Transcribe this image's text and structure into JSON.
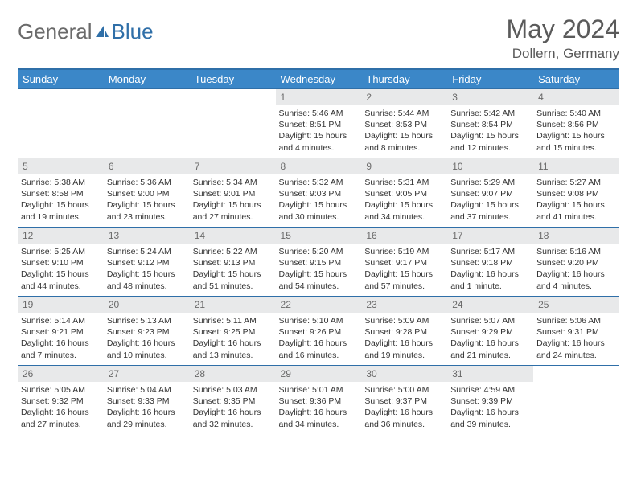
{
  "brand": {
    "part1": "General",
    "part2": "Blue"
  },
  "title": "May 2024",
  "location": "Dollern, Germany",
  "colors": {
    "header_bg": "#3b87c8",
    "border": "#2f6fa8",
    "daynum_bg": "#e8e9ea",
    "text_gray": "#6a6a6a"
  },
  "weekdays": [
    "Sunday",
    "Monday",
    "Tuesday",
    "Wednesday",
    "Thursday",
    "Friday",
    "Saturday"
  ],
  "weeks": [
    [
      {
        "n": "",
        "lines": []
      },
      {
        "n": "",
        "lines": []
      },
      {
        "n": "",
        "lines": []
      },
      {
        "n": "1",
        "lines": [
          "Sunrise: 5:46 AM",
          "Sunset: 8:51 PM",
          "Daylight: 15 hours",
          "and 4 minutes."
        ]
      },
      {
        "n": "2",
        "lines": [
          "Sunrise: 5:44 AM",
          "Sunset: 8:53 PM",
          "Daylight: 15 hours",
          "and 8 minutes."
        ]
      },
      {
        "n": "3",
        "lines": [
          "Sunrise: 5:42 AM",
          "Sunset: 8:54 PM",
          "Daylight: 15 hours",
          "and 12 minutes."
        ]
      },
      {
        "n": "4",
        "lines": [
          "Sunrise: 5:40 AM",
          "Sunset: 8:56 PM",
          "Daylight: 15 hours",
          "and 15 minutes."
        ]
      }
    ],
    [
      {
        "n": "5",
        "lines": [
          "Sunrise: 5:38 AM",
          "Sunset: 8:58 PM",
          "Daylight: 15 hours",
          "and 19 minutes."
        ]
      },
      {
        "n": "6",
        "lines": [
          "Sunrise: 5:36 AM",
          "Sunset: 9:00 PM",
          "Daylight: 15 hours",
          "and 23 minutes."
        ]
      },
      {
        "n": "7",
        "lines": [
          "Sunrise: 5:34 AM",
          "Sunset: 9:01 PM",
          "Daylight: 15 hours",
          "and 27 minutes."
        ]
      },
      {
        "n": "8",
        "lines": [
          "Sunrise: 5:32 AM",
          "Sunset: 9:03 PM",
          "Daylight: 15 hours",
          "and 30 minutes."
        ]
      },
      {
        "n": "9",
        "lines": [
          "Sunrise: 5:31 AM",
          "Sunset: 9:05 PM",
          "Daylight: 15 hours",
          "and 34 minutes."
        ]
      },
      {
        "n": "10",
        "lines": [
          "Sunrise: 5:29 AM",
          "Sunset: 9:07 PM",
          "Daylight: 15 hours",
          "and 37 minutes."
        ]
      },
      {
        "n": "11",
        "lines": [
          "Sunrise: 5:27 AM",
          "Sunset: 9:08 PM",
          "Daylight: 15 hours",
          "and 41 minutes."
        ]
      }
    ],
    [
      {
        "n": "12",
        "lines": [
          "Sunrise: 5:25 AM",
          "Sunset: 9:10 PM",
          "Daylight: 15 hours",
          "and 44 minutes."
        ]
      },
      {
        "n": "13",
        "lines": [
          "Sunrise: 5:24 AM",
          "Sunset: 9:12 PM",
          "Daylight: 15 hours",
          "and 48 minutes."
        ]
      },
      {
        "n": "14",
        "lines": [
          "Sunrise: 5:22 AM",
          "Sunset: 9:13 PM",
          "Daylight: 15 hours",
          "and 51 minutes."
        ]
      },
      {
        "n": "15",
        "lines": [
          "Sunrise: 5:20 AM",
          "Sunset: 9:15 PM",
          "Daylight: 15 hours",
          "and 54 minutes."
        ]
      },
      {
        "n": "16",
        "lines": [
          "Sunrise: 5:19 AM",
          "Sunset: 9:17 PM",
          "Daylight: 15 hours",
          "and 57 minutes."
        ]
      },
      {
        "n": "17",
        "lines": [
          "Sunrise: 5:17 AM",
          "Sunset: 9:18 PM",
          "Daylight: 16 hours",
          "and 1 minute."
        ]
      },
      {
        "n": "18",
        "lines": [
          "Sunrise: 5:16 AM",
          "Sunset: 9:20 PM",
          "Daylight: 16 hours",
          "and 4 minutes."
        ]
      }
    ],
    [
      {
        "n": "19",
        "lines": [
          "Sunrise: 5:14 AM",
          "Sunset: 9:21 PM",
          "Daylight: 16 hours",
          "and 7 minutes."
        ]
      },
      {
        "n": "20",
        "lines": [
          "Sunrise: 5:13 AM",
          "Sunset: 9:23 PM",
          "Daylight: 16 hours",
          "and 10 minutes."
        ]
      },
      {
        "n": "21",
        "lines": [
          "Sunrise: 5:11 AM",
          "Sunset: 9:25 PM",
          "Daylight: 16 hours",
          "and 13 minutes."
        ]
      },
      {
        "n": "22",
        "lines": [
          "Sunrise: 5:10 AM",
          "Sunset: 9:26 PM",
          "Daylight: 16 hours",
          "and 16 minutes."
        ]
      },
      {
        "n": "23",
        "lines": [
          "Sunrise: 5:09 AM",
          "Sunset: 9:28 PM",
          "Daylight: 16 hours",
          "and 19 minutes."
        ]
      },
      {
        "n": "24",
        "lines": [
          "Sunrise: 5:07 AM",
          "Sunset: 9:29 PM",
          "Daylight: 16 hours",
          "and 21 minutes."
        ]
      },
      {
        "n": "25",
        "lines": [
          "Sunrise: 5:06 AM",
          "Sunset: 9:31 PM",
          "Daylight: 16 hours",
          "and 24 minutes."
        ]
      }
    ],
    [
      {
        "n": "26",
        "lines": [
          "Sunrise: 5:05 AM",
          "Sunset: 9:32 PM",
          "Daylight: 16 hours",
          "and 27 minutes."
        ]
      },
      {
        "n": "27",
        "lines": [
          "Sunrise: 5:04 AM",
          "Sunset: 9:33 PM",
          "Daylight: 16 hours",
          "and 29 minutes."
        ]
      },
      {
        "n": "28",
        "lines": [
          "Sunrise: 5:03 AM",
          "Sunset: 9:35 PM",
          "Daylight: 16 hours",
          "and 32 minutes."
        ]
      },
      {
        "n": "29",
        "lines": [
          "Sunrise: 5:01 AM",
          "Sunset: 9:36 PM",
          "Daylight: 16 hours",
          "and 34 minutes."
        ]
      },
      {
        "n": "30",
        "lines": [
          "Sunrise: 5:00 AM",
          "Sunset: 9:37 PM",
          "Daylight: 16 hours",
          "and 36 minutes."
        ]
      },
      {
        "n": "31",
        "lines": [
          "Sunrise: 4:59 AM",
          "Sunset: 9:39 PM",
          "Daylight: 16 hours",
          "and 39 minutes."
        ]
      },
      {
        "n": "",
        "lines": []
      }
    ]
  ]
}
